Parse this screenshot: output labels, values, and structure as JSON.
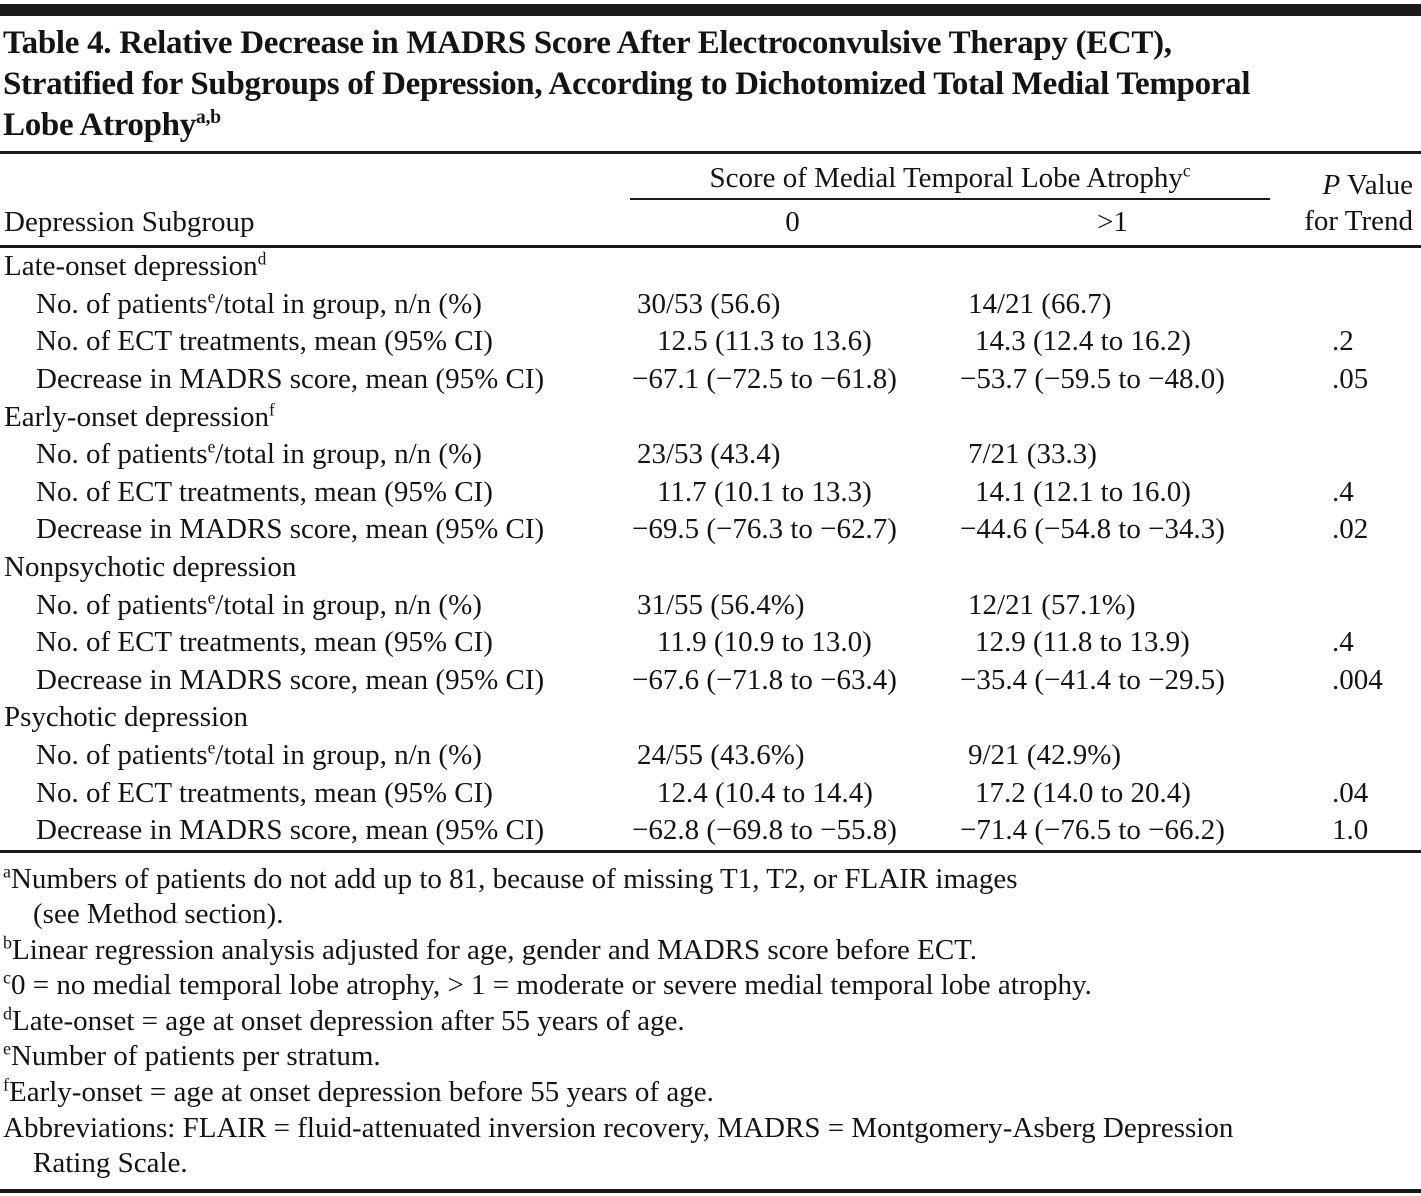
{
  "title": {
    "lines": [
      "Table 4. Relative Decrease in MADRS Score After Electroconvulsive Therapy (ECT),",
      "Stratified for Subgroups of Depression, According to Dichotomized Total Medial Temporal",
      "Lobe Atrophy"
    ],
    "sup": "a,b"
  },
  "table": {
    "header": {
      "stub": "Depression Subgroup",
      "spanner": "Score of Medial Temporal Lobe Atrophy",
      "spanner_sup": "c",
      "col0": "0",
      "col1": ">1",
      "p_italic": "P",
      "p_rest": " Value",
      "p_line2": "for Trend"
    },
    "row_labels": {
      "patients": [
        {
          "t": "No. of patients"
        },
        {
          "s": "e"
        },
        {
          "t": "/total in group, n/n (%)"
        }
      ],
      "ect": [
        {
          "t": "No. of ECT treatments, mean (95% CI)"
        }
      ],
      "madrs": [
        {
          "t": "Decrease in MADRS score, mean (95% CI)"
        }
      ]
    },
    "groups": [
      {
        "label": "Late-onset depression",
        "sup": "d",
        "rows": [
          {
            "type": "patients",
            "score0": "30/53 (56.6)",
            "score1": "14/21 (66.7)",
            "p": ""
          },
          {
            "type": "ect",
            "score0": "12.5 (11.3 to 13.6)",
            "score1": "14.3 (12.4 to 16.2)",
            "p": ".2"
          },
          {
            "type": "madrs",
            "score0": "−67.1 (−72.5 to −61.8)",
            "score1": "−53.7 (−59.5 to −48.0)",
            "p": ".05"
          }
        ]
      },
      {
        "label": "Early-onset depression",
        "sup": "f",
        "rows": [
          {
            "type": "patients",
            "score0": "23/53 (43.4)",
            "score1": "7/21 (33.3)",
            "p": ""
          },
          {
            "type": "ect",
            "score0": "11.7 (10.1 to 13.3)",
            "score1": "14.1 (12.1 to 16.0)",
            "p": ".4"
          },
          {
            "type": "madrs",
            "score0": "−69.5 (−76.3 to −62.7)",
            "score1": "−44.6 (−54.8 to −34.3)",
            "p": ".02"
          }
        ]
      },
      {
        "label": "Nonpsychotic depression",
        "sup": "",
        "rows": [
          {
            "type": "patients",
            "score0": "31/55 (56.4%)",
            "score1": "12/21 (57.1%)",
            "p": ""
          },
          {
            "type": "ect",
            "score0": "11.9 (10.9 to 13.0)",
            "score1": "12.9 (11.8 to 13.9)",
            "p": ".4"
          },
          {
            "type": "madrs",
            "score0": "−67.6 (−71.8 to −63.4)",
            "score1": "−35.4 (−41.4 to −29.5)",
            "p": ".004"
          }
        ]
      },
      {
        "label": "Psychotic depression",
        "sup": "",
        "rows": [
          {
            "type": "patients",
            "score0": "24/55 (43.6%)",
            "score1": "9/21 (42.9%)",
            "p": ""
          },
          {
            "type": "ect",
            "score0": "12.4 (10.4 to 14.4)",
            "score1": "17.2 (14.0 to 20.4)",
            "p": ".04"
          },
          {
            "type": "madrs",
            "score0": "−62.8 (−69.8 to −55.8)",
            "score1": "−71.4 (−76.5 to −66.2)",
            "p": "1.0"
          }
        ]
      }
    ]
  },
  "footnotes": [
    {
      "sup": "a",
      "lines": [
        "Numbers of patients do not add up to 81, because of missing T1, T2, or FLAIR images",
        "(see Method section)."
      ]
    },
    {
      "sup": "b",
      "lines": [
        "Linear regression analysis adjusted for age, gender and MADRS score before ECT."
      ]
    },
    {
      "sup": "c",
      "lines": [
        "0 = no medial temporal lobe atrophy, > 1 = moderate or severe medial temporal lobe atrophy."
      ]
    },
    {
      "sup": "d",
      "lines": [
        "Late-onset = age at onset depression after 55 years of age."
      ]
    },
    {
      "sup": "e",
      "lines": [
        "Number of patients per stratum."
      ]
    },
    {
      "sup": "f",
      "lines": [
        "Early-onset = age at onset depression before 55 years of age."
      ]
    },
    {
      "sup": "",
      "lines": [
        "Abbreviations: FLAIR = fluid-attenuated inversion recovery, MADRS = Montgomery-Asberg Depression",
        "Rating Scale."
      ]
    }
  ]
}
